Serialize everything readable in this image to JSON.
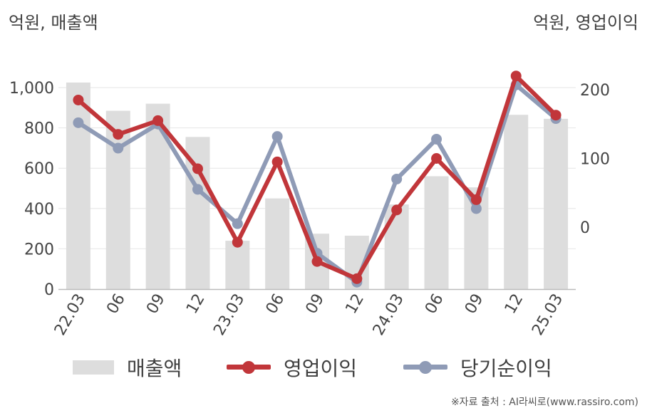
{
  "unit_left": "억원, 매출액",
  "unit_right": "억원, 영업이익",
  "source": "※자료 출처 : AI라씨로(www.rassiro.com)",
  "chart_data": {
    "type": "bar",
    "categories": [
      "22.03",
      "06",
      "09",
      "12",
      "23.03",
      "06",
      "09",
      "12",
      "24.03",
      "06",
      "09",
      "12",
      "25.03"
    ],
    "y_left": {
      "ylim": [
        0,
        1000
      ],
      "ticks": [
        0,
        200,
        400,
        600,
        800,
        1000
      ],
      "tick_labels": [
        "0",
        "200",
        "400",
        "600",
        "800",
        "1,000"
      ]
    },
    "y_right": {
      "ylim": [
        0,
        200
      ],
      "ticks": [
        0,
        100,
        200
      ],
      "tick_labels": [
        "0",
        "100",
        "200"
      ]
    },
    "grid": true,
    "legend_position": "bottom",
    "series": [
      {
        "name": "매출액",
        "type": "bar",
        "axis": "left",
        "color": "#dddddd",
        "values": [
          1025,
          885,
          920,
          755,
          240,
          450,
          275,
          265,
          420,
          560,
          505,
          865,
          845
        ]
      },
      {
        "name": "영업이익",
        "type": "line",
        "axis": "right",
        "color": "#c1363a",
        "values": [
          185,
          135,
          155,
          85,
          -22,
          95,
          -50,
          -75,
          25,
          100,
          40,
          220,
          163
        ]
      },
      {
        "name": "당기순이익",
        "type": "line",
        "axis": "right",
        "color": "#8f9bb6",
        "values": [
          152,
          115,
          150,
          55,
          5,
          132,
          -38,
          -80,
          70,
          128,
          27,
          207,
          158
        ]
      }
    ]
  }
}
